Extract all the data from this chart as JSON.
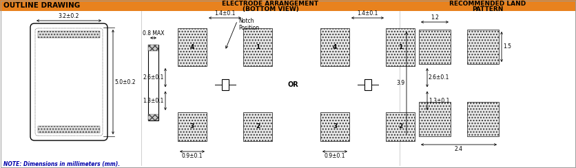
{
  "title_text": "OUTLINE DRAWING",
  "title_bg": "#E8821E",
  "title_text_color": "#000000",
  "bg_color": "#FFFFFF",
  "line_color": "#000000",
  "section2_title_line1": "ELECTRODE ARRANGEMENT",
  "section2_title_line2": "(BOTTOM VIEW)",
  "section3_title_line1": "RECOMMENDED LAND",
  "section3_title_line2": "PATTERN",
  "note_text": "NOTE: Dimensions in millimeters (mm).",
  "dim_32": "3.2±0.2",
  "dim_50": "5.0±0.2",
  "dim_08": "0.8 MAX",
  "dim_14a": "1.4±0.1",
  "dim_14b": "1.4±0.1",
  "dim_26a": "2.6±0.1",
  "dim_26b": "2.6±0.1",
  "dim_13a": "1.3±0.1",
  "dim_13b": "1.3±0.1",
  "dim_09a": "0.9±0.1",
  "dim_09b": "0.9±0.1",
  "dim_12": "1.2",
  "dim_15": "1.5",
  "dim_39": "3.9",
  "dim_24": "2.4",
  "notch_text": "Notch\nPosition"
}
